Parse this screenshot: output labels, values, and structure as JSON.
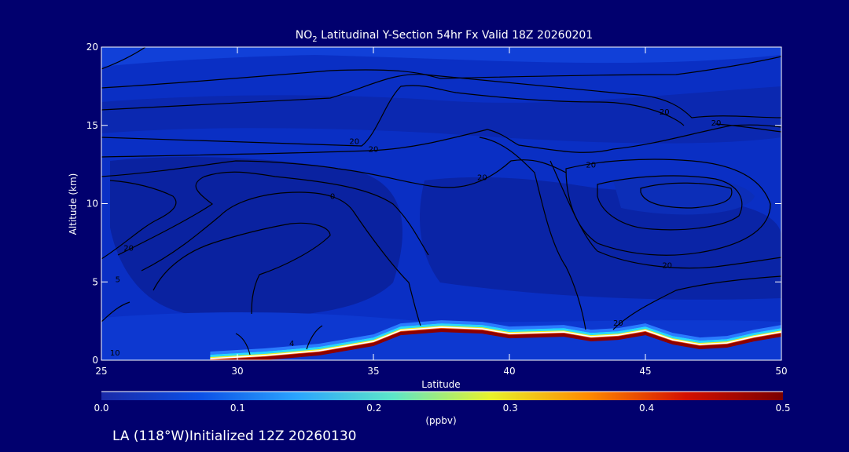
{
  "chart_data": {
    "type": "heatmap",
    "title": {
      "prefix": "NO",
      "subscript": "2",
      "rest": " Latitudinal Y-Section 54hr  Fx Valid 18Z 20260201"
    },
    "xlabel": "Latitude",
    "ylabel": "Altitude (km)",
    "xlim": [
      25,
      50
    ],
    "ylim": [
      0,
      20
    ],
    "x_ticks": [
      25,
      30,
      35,
      40,
      45,
      50
    ],
    "y_ticks": [
      0,
      5,
      10,
      15,
      20
    ],
    "colorbar": {
      "label": "(ppbv)",
      "range": [
        0,
        0.5
      ],
      "ticks": [
        "0.0",
        "0.1",
        "0.2",
        "0.3",
        "0.4",
        "0.5"
      ],
      "colors": [
        "#1a2aa8",
        "#0b4fe6",
        "#2aa4ff",
        "#5de6c8",
        "#e8f22a",
        "#ff8a00",
        "#d41000",
        "#7a0000"
      ]
    },
    "terrain_top_km": {
      "lat": [
        29,
        31,
        33,
        35,
        36,
        37.5,
        39,
        40,
        42,
        43,
        44,
        45,
        46,
        47,
        48,
        49,
        50
      ],
      "alt": [
        0,
        0.2,
        0.5,
        1.1,
        1.8,
        2.0,
        1.9,
        1.6,
        1.7,
        1.4,
        1.5,
        1.8,
        1.2,
        0.9,
        1.0,
        1.4,
        1.7
      ]
    },
    "contour_labels": [
      {
        "text": "20",
        "lat": 34.3,
        "alt": 13.8
      },
      {
        "text": "20",
        "lat": 35.0,
        "alt": 13.3
      },
      {
        "text": "20",
        "lat": 39.0,
        "alt": 11.5
      },
      {
        "text": "0",
        "lat": 33.5,
        "alt": 10.3
      },
      {
        "text": "20",
        "lat": 26.0,
        "alt": 7.0
      },
      {
        "text": "5",
        "lat": 25.6,
        "alt": 5.0
      },
      {
        "text": "20",
        "lat": 43.0,
        "alt": 12.3
      },
      {
        "text": "20",
        "lat": 45.7,
        "alt": 15.7
      },
      {
        "text": "20",
        "lat": 47.6,
        "alt": 15.0
      },
      {
        "text": "20",
        "lat": 45.8,
        "alt": 5.9
      },
      {
        "text": "20",
        "lat": 44.0,
        "alt": 2.2
      },
      {
        "text": "4",
        "lat": 32.0,
        "alt": 0.9
      },
      {
        "text": "10",
        "lat": 25.5,
        "alt": 0.3
      }
    ],
    "footer": "LA (118°W)Initialized 12Z 20260130"
  }
}
